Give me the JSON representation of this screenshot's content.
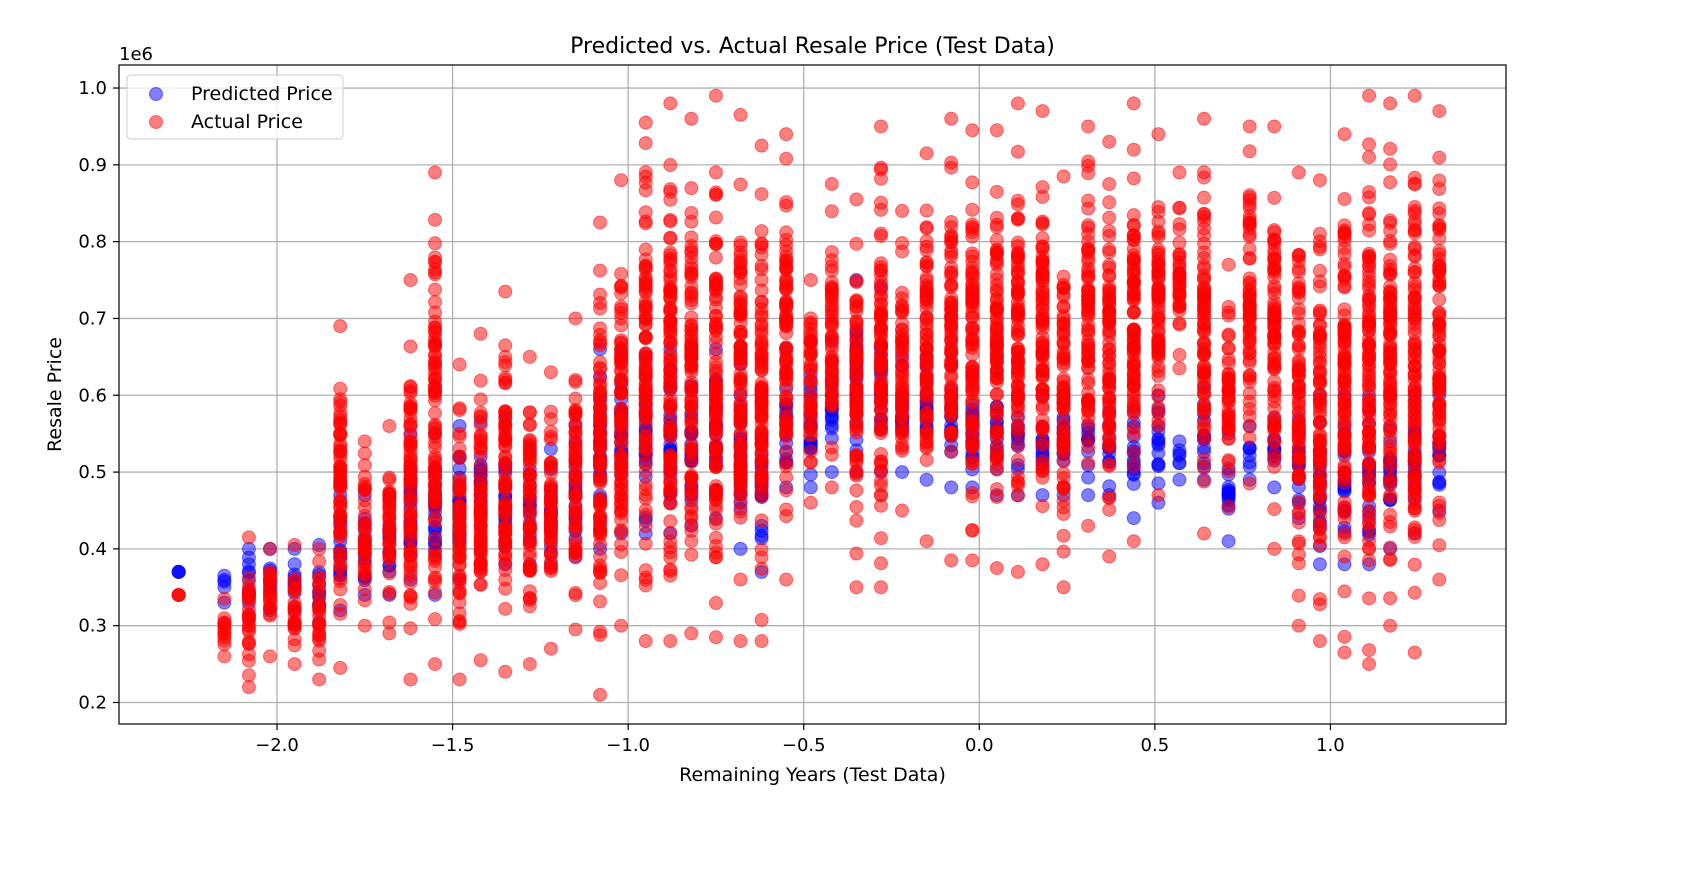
{
  "chart_data": {
    "type": "scatter",
    "title": "Predicted vs. Actual Resale Price (Test Data)",
    "xlabel": "Remaining Years (Test Data)",
    "ylabel": "Resale Price",
    "y_offset_label": "1e6",
    "xlim": [
      -2.45,
      1.5
    ],
    "ylim": [
      0.172,
      1.03
    ],
    "x_ticks": [
      -2.0,
      -1.5,
      -1.0,
      -0.5,
      0.0,
      0.5,
      1.0
    ],
    "x_tick_labels": [
      "−2.0",
      "−1.5",
      "−1.0",
      "−0.5",
      "0.0",
      "0.5",
      "1.0"
    ],
    "y_ticks": [
      0.2,
      0.3,
      0.4,
      0.5,
      0.6,
      0.7,
      0.8,
      0.9,
      1.0
    ],
    "y_tick_labels": [
      "0.2",
      "0.3",
      "0.4",
      "0.5",
      "0.6",
      "0.7",
      "0.8",
      "0.9",
      "1.0"
    ],
    "grid": true,
    "legend_position": "top-left",
    "x_columns": [
      -2.28,
      -2.15,
      -2.08,
      -2.02,
      -1.95,
      -1.88,
      -1.82,
      -1.75,
      -1.68,
      -1.62,
      -1.55,
      -1.48,
      -1.42,
      -1.35,
      -1.28,
      -1.22,
      -1.15,
      -1.08,
      -1.02,
      -0.95,
      -0.88,
      -0.82,
      -0.75,
      -0.68,
      -0.62,
      -0.55,
      -0.48,
      -0.42,
      -0.35,
      -0.28,
      -0.22,
      -0.15,
      -0.08,
      -0.02,
      0.05,
      0.11,
      0.18,
      0.24,
      0.31,
      0.37,
      0.44,
      0.51,
      0.57,
      0.64,
      0.71,
      0.77,
      0.84,
      0.91,
      0.97,
      1.04,
      1.11,
      1.17,
      1.24,
      1.31
    ],
    "series": [
      {
        "name": "Predicted Price",
        "color": "#0000ff",
        "ranges": [
          [
            0.37,
            0.37
          ],
          [
            0.33,
            0.365
          ],
          [
            0.31,
            0.4
          ],
          [
            0.32,
            0.4
          ],
          [
            0.32,
            0.4
          ],
          [
            0.305,
            0.405
          ],
          [
            0.32,
            0.47
          ],
          [
            0.34,
            0.47
          ],
          [
            0.34,
            0.47
          ],
          [
            0.36,
            0.55
          ],
          [
            0.34,
            0.55
          ],
          [
            0.36,
            0.56
          ],
          [
            0.38,
            0.565
          ],
          [
            0.38,
            0.57
          ],
          [
            0.38,
            0.53
          ],
          [
            0.38,
            0.53
          ],
          [
            0.39,
            0.56
          ],
          [
            0.4,
            0.66
          ],
          [
            0.42,
            0.66
          ],
          [
            0.42,
            0.65
          ],
          [
            0.42,
            0.66
          ],
          [
            0.43,
            0.65
          ],
          [
            0.44,
            0.66
          ],
          [
            0.4,
            0.64
          ],
          [
            0.37,
            0.6
          ],
          [
            0.48,
            0.66
          ],
          [
            0.48,
            0.67
          ],
          [
            0.5,
            0.67
          ],
          [
            0.5,
            0.75
          ],
          [
            0.5,
            0.74
          ],
          [
            0.5,
            0.65
          ],
          [
            0.49,
            0.65
          ],
          [
            0.48,
            0.64
          ],
          [
            0.48,
            0.63
          ],
          [
            0.47,
            0.63
          ],
          [
            0.47,
            0.6
          ],
          [
            0.47,
            0.6
          ],
          [
            0.47,
            0.6
          ],
          [
            0.47,
            0.59
          ],
          [
            0.47,
            0.58
          ],
          [
            0.44,
            0.58
          ],
          [
            0.46,
            0.6
          ],
          [
            0.49,
            0.54
          ],
          [
            0.49,
            0.61
          ],
          [
            0.41,
            0.55
          ],
          [
            0.49,
            0.56
          ],
          [
            0.48,
            0.57
          ],
          [
            0.44,
            0.57
          ],
          [
            0.38,
            0.6
          ],
          [
            0.38,
            0.6
          ],
          [
            0.38,
            0.6
          ],
          [
            0.4,
            0.6
          ],
          [
            0.42,
            0.6
          ],
          [
            0.45,
            0.6
          ]
        ]
      },
      {
        "name": "Actual Price",
        "color": "#ff0000",
        "ranges": [
          [
            0.34,
            0.34
          ],
          [
            0.26,
            0.335
          ],
          [
            0.22,
            0.415
          ],
          [
            0.26,
            0.4
          ],
          [
            0.25,
            0.405
          ],
          [
            0.23,
            0.4
          ],
          [
            0.245,
            0.69
          ],
          [
            0.3,
            0.54
          ],
          [
            0.29,
            0.56
          ],
          [
            0.23,
            0.75
          ],
          [
            0.25,
            0.89
          ],
          [
            0.23,
            0.64
          ],
          [
            0.255,
            0.68
          ],
          [
            0.24,
            0.735
          ],
          [
            0.25,
            0.65
          ],
          [
            0.27,
            0.63
          ],
          [
            0.295,
            0.7
          ],
          [
            0.21,
            0.825
          ],
          [
            0.3,
            0.88
          ],
          [
            0.28,
            0.955
          ],
          [
            0.28,
            0.98
          ],
          [
            0.29,
            0.96
          ],
          [
            0.285,
            0.99
          ],
          [
            0.28,
            0.965
          ],
          [
            0.28,
            0.925
          ],
          [
            0.36,
            0.94
          ],
          [
            0.46,
            0.75
          ],
          [
            0.48,
            0.875
          ],
          [
            0.35,
            0.855
          ],
          [
            0.35,
            0.95
          ],
          [
            0.45,
            0.84
          ],
          [
            0.41,
            0.915
          ],
          [
            0.385,
            0.96
          ],
          [
            0.385,
            0.945
          ],
          [
            0.375,
            0.945
          ],
          [
            0.37,
            0.98
          ],
          [
            0.38,
            0.97
          ],
          [
            0.35,
            0.885
          ],
          [
            0.43,
            0.95
          ],
          [
            0.39,
            0.93
          ],
          [
            0.41,
            0.98
          ],
          [
            0.47,
            0.94
          ],
          [
            0.635,
            0.89
          ],
          [
            0.42,
            0.96
          ],
          [
            0.455,
            0.77
          ],
          [
            0.485,
            0.95
          ],
          [
            0.4,
            0.95
          ],
          [
            0.3,
            0.89
          ],
          [
            0.28,
            0.88
          ],
          [
            0.265,
            0.94
          ],
          [
            0.25,
            0.99
          ],
          [
            0.3,
            0.98
          ],
          [
            0.265,
            0.99
          ],
          [
            0.36,
            0.97
          ]
        ]
      }
    ]
  }
}
